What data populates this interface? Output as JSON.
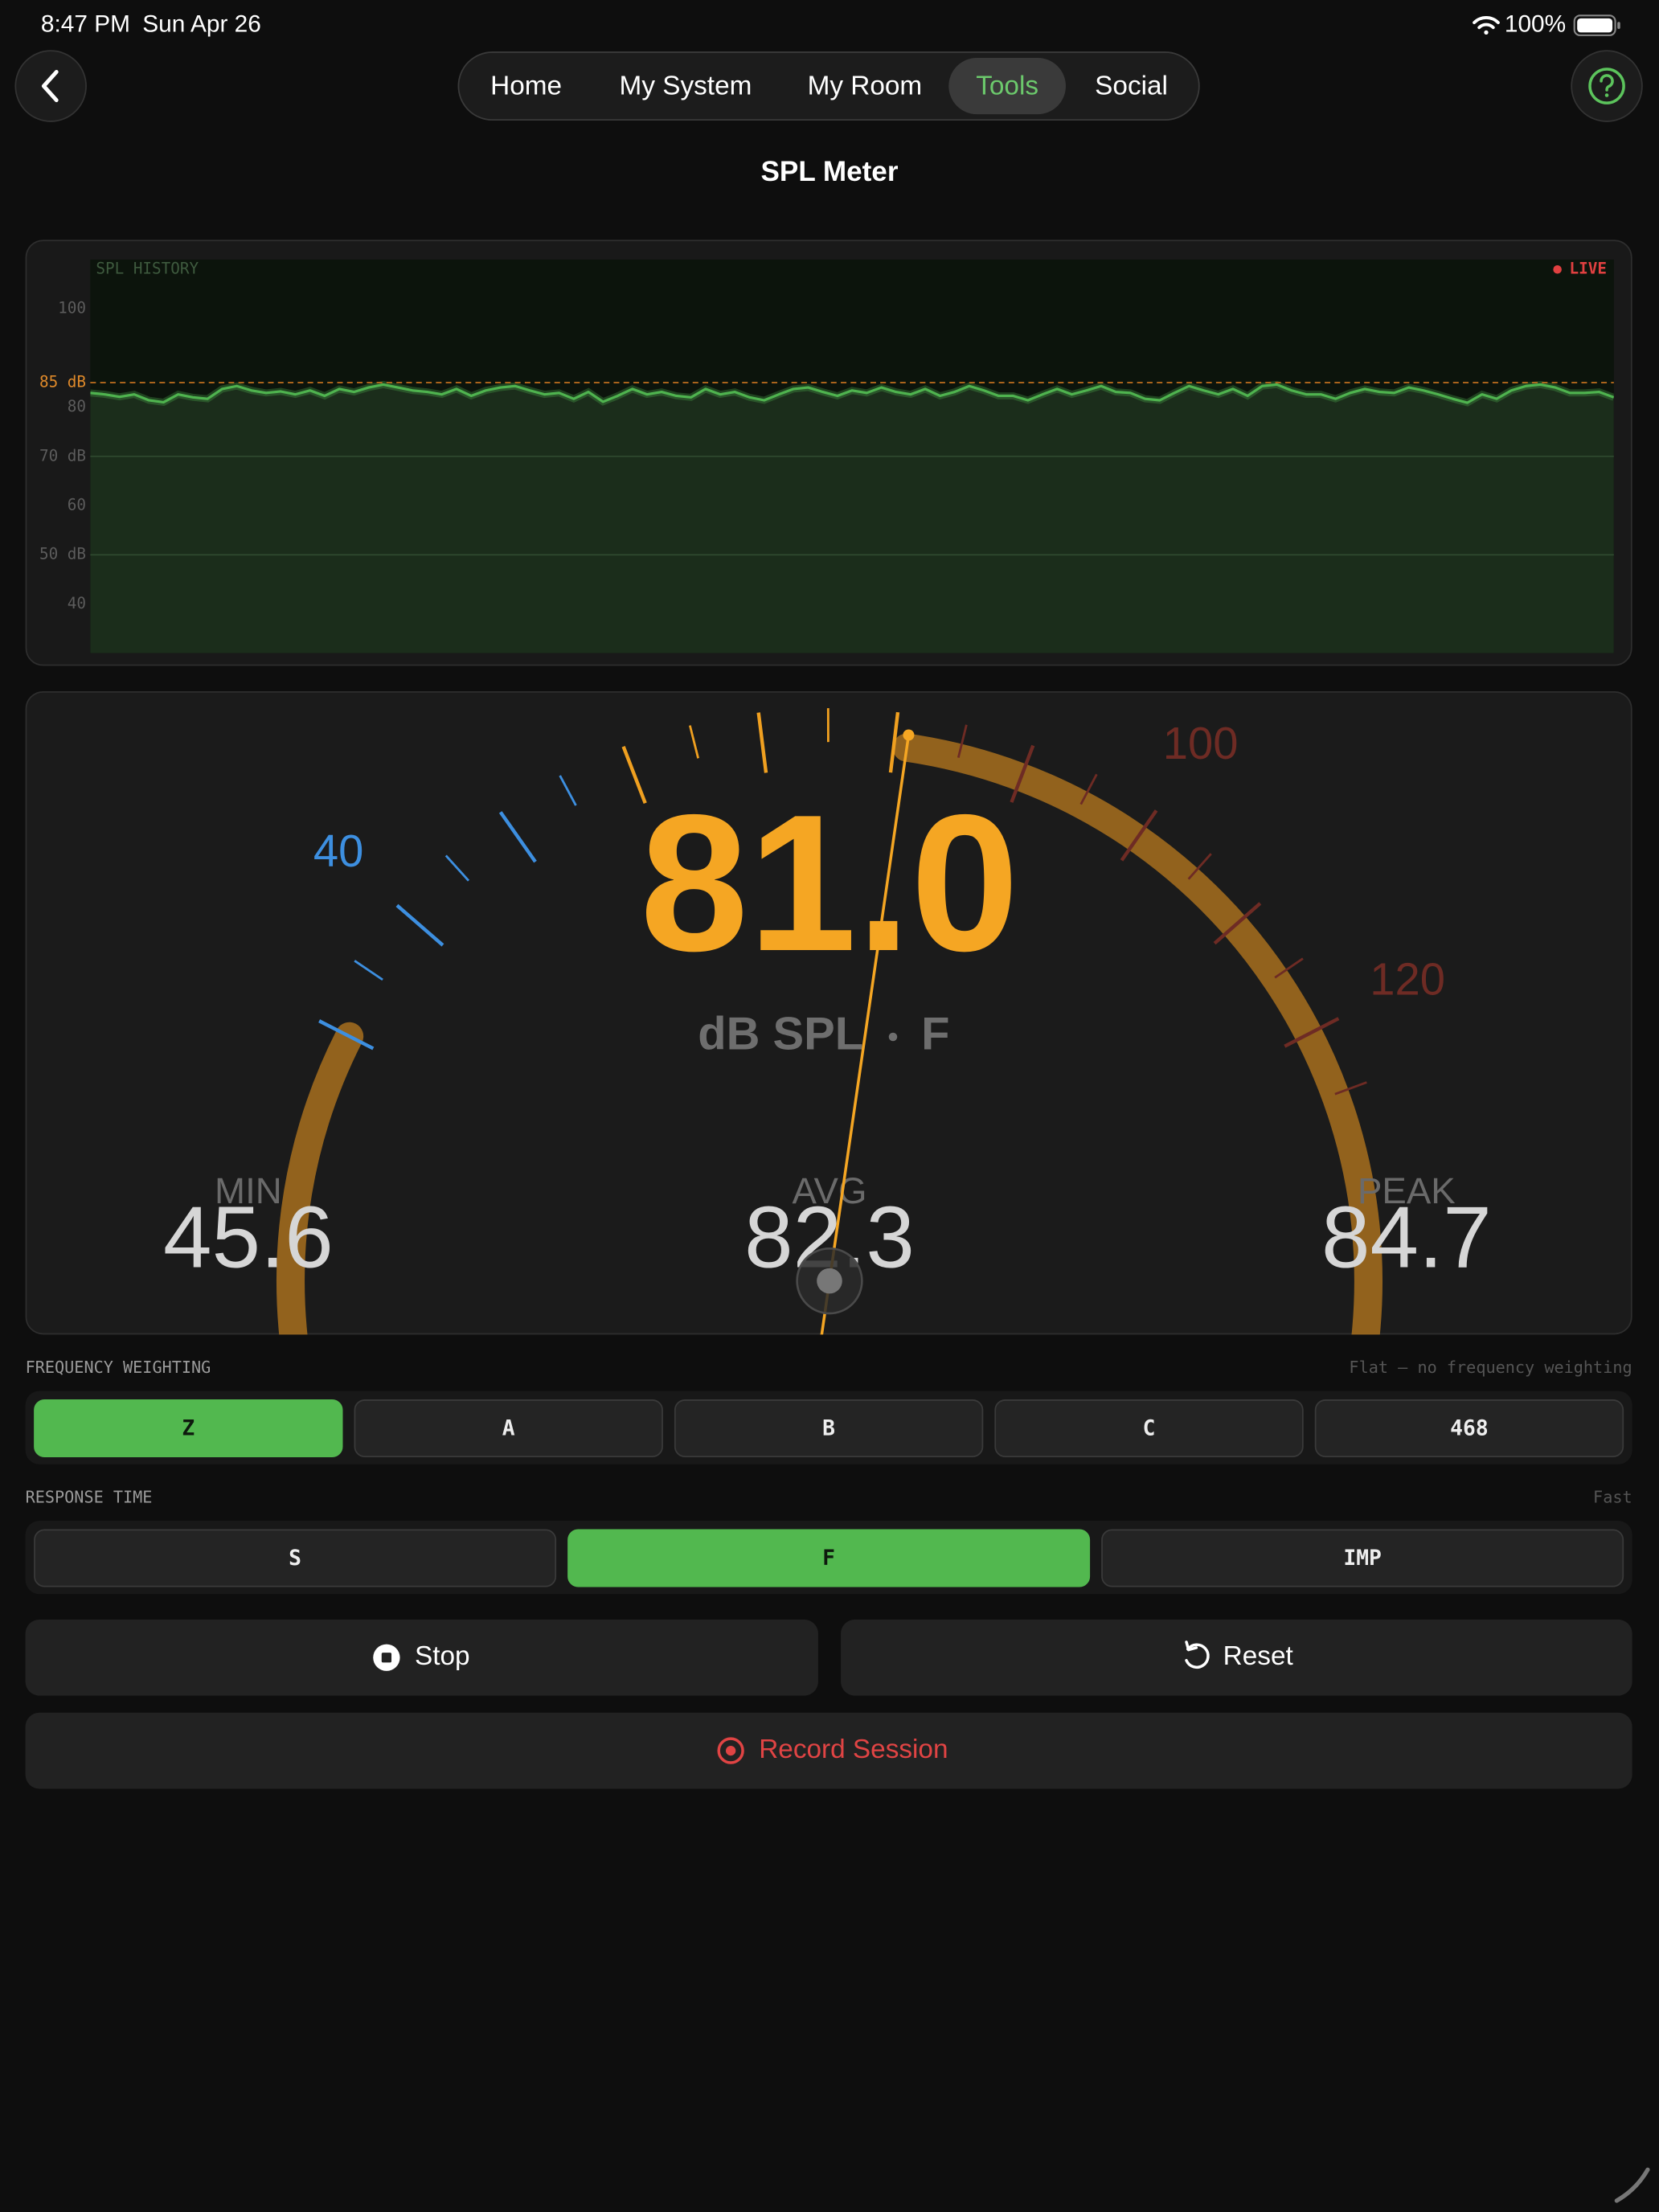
{
  "status_bar": {
    "time": "8:47 PM",
    "date": "Sun Apr 26",
    "battery": "100%"
  },
  "nav": {
    "tabs": [
      "Home",
      "My System",
      "My Room",
      "Tools",
      "Social"
    ],
    "active": 3
  },
  "title": "SPL Meter",
  "history": {
    "type": "line",
    "title": "SPL HISTORY",
    "status": "LIVE",
    "color": "#4fb34f",
    "ylim": [
      30,
      110
    ],
    "yticks": [
      40,
      {
        "value": 50,
        "label": "50 dB"
      },
      60,
      {
        "value": 70,
        "label": "70 dB"
      },
      80,
      {
        "value": 85,
        "label": "85 dB"
      },
      100
    ],
    "threshold": 85,
    "values": [
      82.9,
      82.6,
      82.1,
      82.6,
      81.4,
      81.0,
      82.6,
      82.0,
      81.7,
      83.7,
      84.3,
      83.4,
      82.9,
      83.2,
      82.6,
      83.4,
      82.3,
      83.7,
      83.1,
      84.0,
      84.6,
      84.0,
      83.4,
      83.1,
      82.6,
      83.7,
      82.3,
      83.4,
      84.0,
      84.3,
      83.4,
      82.6,
      82.9,
      81.7,
      83.1,
      81.1,
      82.3,
      83.7,
      82.6,
      83.1,
      82.3,
      82.0,
      83.7,
      82.6,
      83.1,
      82.0,
      81.4,
      82.6,
      83.7,
      84.0,
      83.1,
      82.3,
      83.4,
      82.9,
      84.0,
      83.1,
      82.6,
      83.7,
      82.3,
      83.1,
      84.3,
      83.4,
      82.3,
      82.3,
      81.4,
      82.6,
      83.7,
      82.6,
      83.4,
      84.3,
      83.1,
      82.9,
      81.7,
      81.4,
      82.9,
      84.3,
      83.4,
      82.6,
      83.7,
      82.3,
      84.3,
      84.6,
      83.4,
      82.6,
      82.6,
      81.7,
      82.9,
      83.7,
      83.1,
      82.9,
      84.0,
      83.4,
      82.6,
      81.7,
      80.9,
      82.6,
      81.7,
      83.4,
      84.3,
      84.6,
      84.0,
      82.9,
      82.9,
      83.1,
      82.0
    ]
  },
  "gauge": {
    "value": 81.0,
    "value_label": "81.0",
    "unit": "dB SPL",
    "mode": "F",
    "scale_min": 30,
    "scale_max": 125,
    "major_step": 10,
    "minor_step": 5,
    "scale_labels": [
      40,
      100,
      120
    ],
    "stats": [
      {
        "name": "MIN",
        "value": "45.6"
      },
      {
        "name": "AVG",
        "value": "82.3"
      },
      {
        "name": "PEAK",
        "value": "84.7"
      }
    ]
  },
  "frequency_weighting": {
    "label": "FREQUENCY WEIGHTING",
    "description": "Flat — no frequency weighting",
    "options": [
      "Z",
      "A",
      "B",
      "C",
      "468"
    ],
    "selected": 0
  },
  "response_time": {
    "label": "RESPONSE TIME",
    "description": "Fast",
    "options": [
      "S",
      "F",
      "IMP"
    ],
    "selected": 1
  },
  "actions": {
    "stop": "Stop",
    "reset": "Reset",
    "record": "Record Session"
  }
}
